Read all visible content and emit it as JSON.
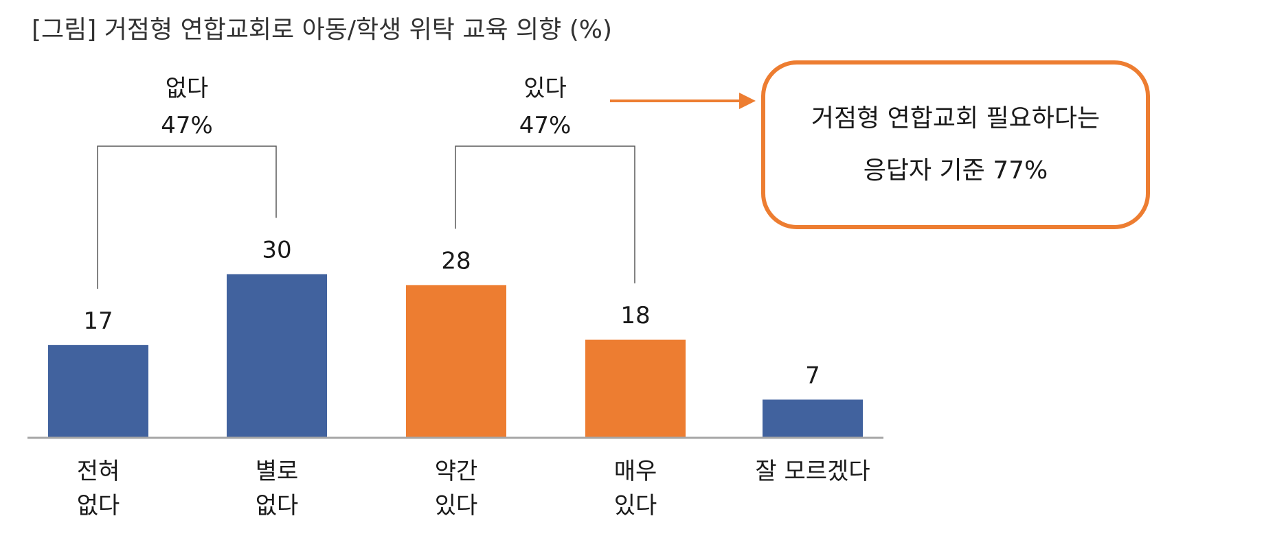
{
  "chart_data": {
    "type": "bar",
    "title": "[그림] 거점형 연합교회로 아동/학생 위탁 교육 의향 (%)",
    "categories": [
      [
        "전혀",
        "없다"
      ],
      [
        "별로",
        "없다"
      ],
      [
        "약간",
        "있다"
      ],
      [
        "매우",
        "있다"
      ],
      [
        "잘 모르겠다"
      ]
    ],
    "values": [
      17,
      30,
      28,
      18,
      7
    ],
    "bar_colors": [
      "#41629E",
      "#41629E",
      "#ED7D31",
      "#ED7D31",
      "#41629E"
    ],
    "ylim": [
      0,
      40
    ],
    "grid": false,
    "groups": [
      {
        "label": "없다",
        "value": "47%",
        "from": 0,
        "to": 1
      },
      {
        "label": "있다",
        "value": "47%",
        "from": 2,
        "to": 3
      }
    ],
    "callout": {
      "lines": [
        "거점형 연합교회 필요하다는",
        "응답자 기준 77%"
      ],
      "border_color": "#ED7D31"
    }
  }
}
